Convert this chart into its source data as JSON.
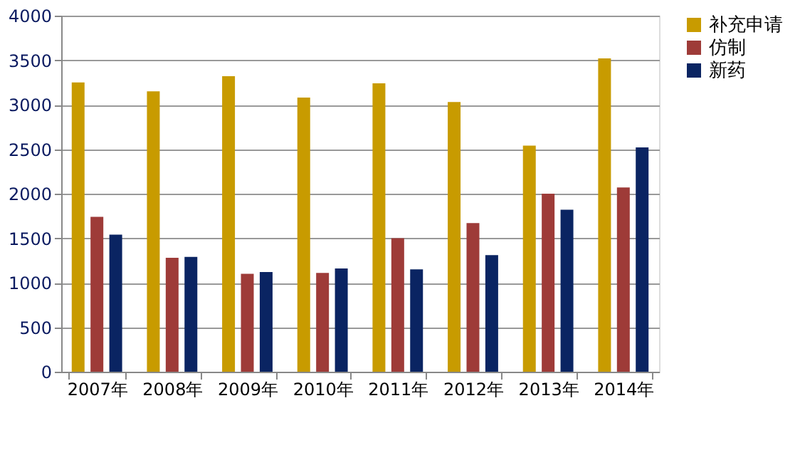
{
  "chart_data": {
    "type": "bar",
    "categories": [
      "2007年",
      "2008年",
      "2009年",
      "2010年",
      "2011年",
      "2012年",
      "2013年",
      "2014年"
    ],
    "series": [
      {
        "name": "补充申请",
        "color": "#c89b00",
        "values": [
          3250,
          3150,
          3320,
          3080,
          3240,
          3030,
          2540,
          3520
        ]
      },
      {
        "name": "仿制",
        "color": "#9e3b38",
        "values": [
          1740,
          1280,
          1100,
          1110,
          1500,
          1670,
          2000,
          2070
        ]
      },
      {
        "name": "新药",
        "color": "#0a2462",
        "values": [
          1540,
          1290,
          1120,
          1160,
          1150,
          1310,
          1820,
          2520
        ]
      }
    ],
    "ylim": [
      0,
      4000
    ],
    "yticks": [
      0,
      500,
      1000,
      1500,
      2000,
      2500,
      3000,
      3500,
      4000
    ],
    "grid": "y",
    "legend": "right"
  }
}
